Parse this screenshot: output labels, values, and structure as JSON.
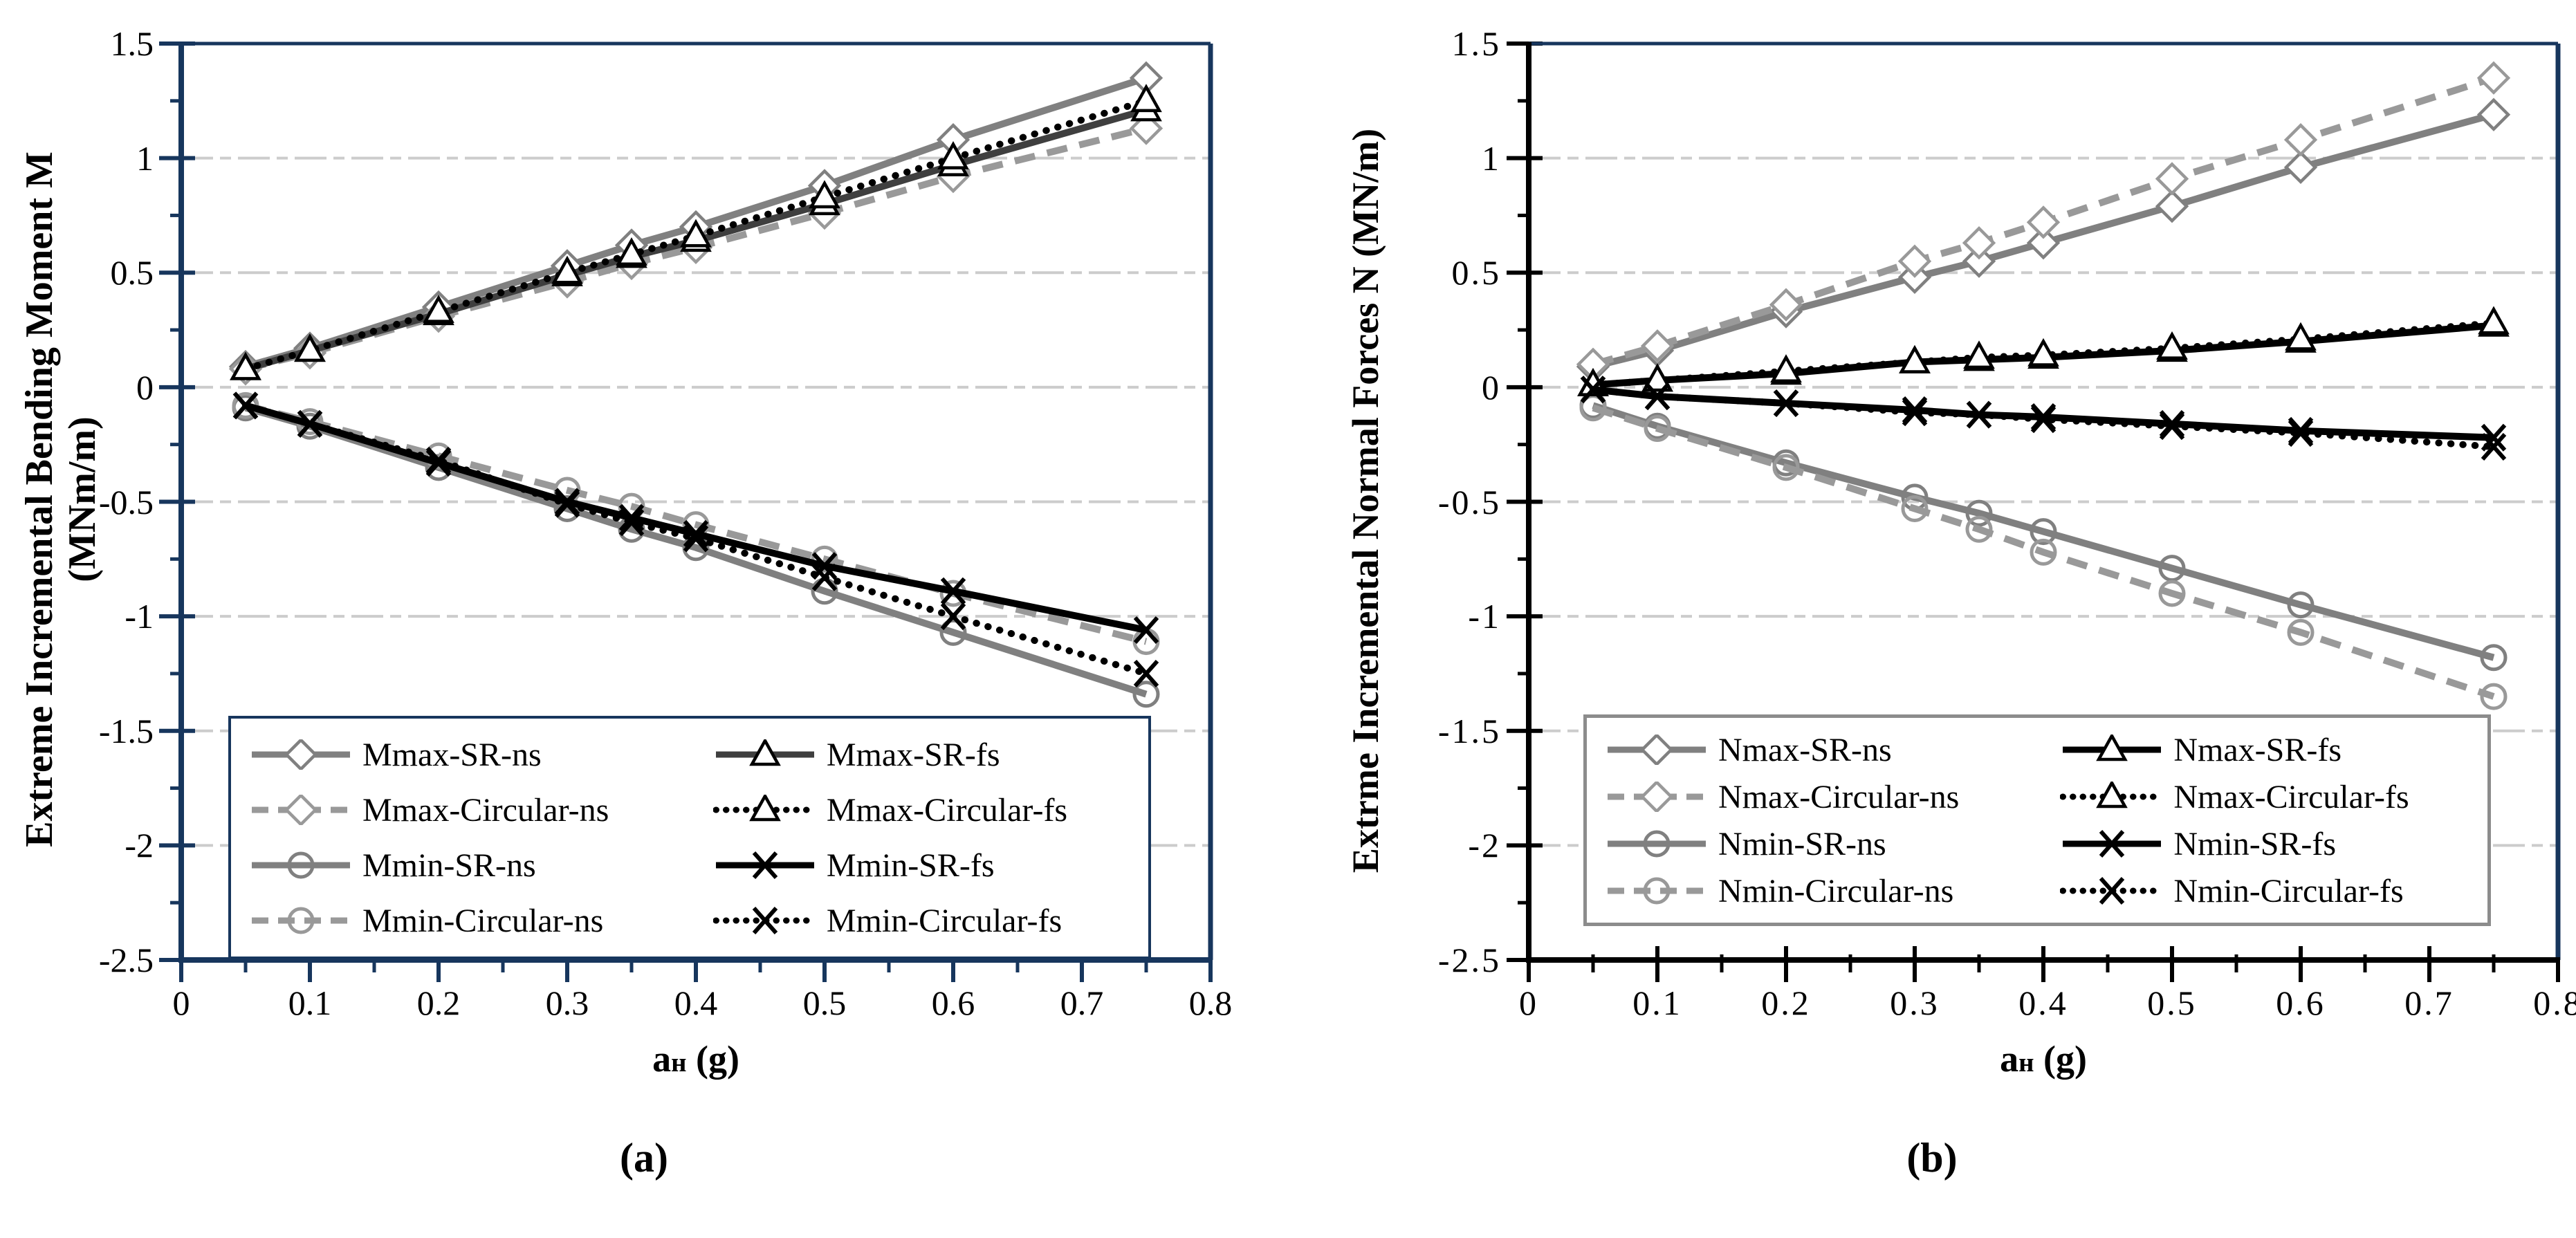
{
  "page": {
    "background": "#ffffff"
  },
  "colors": {
    "navy_axis": "#17365d",
    "black_axis": "#000000",
    "grid": "#cccccc",
    "gray_solid": "#808080",
    "gray_dashed": "#999999",
    "dark_gray": "#3f3f3f",
    "black": "#000000",
    "marker_fill": "#ffffff",
    "legend_border_a": "#17365d",
    "legend_border_b": "#8c8c8c"
  },
  "chart_data": [
    {
      "id": "a",
      "type": "line",
      "caption": "(a)",
      "ylabel_line1": "Extreme Incremental Bending Moment M",
      "ylabel_line2": "(MNm/m)",
      "xlabel_prefix": "a",
      "xlabel_sub": "н",
      "xlabel_suffix": " (g)",
      "xlim": [
        0,
        0.8
      ],
      "ylim": [
        -2.5,
        1.5
      ],
      "x_major_step": 0.1,
      "x_minor_step": 0.05,
      "y_major_step": 0.5,
      "y_minor_step": 0.25,
      "grid": "horizontal dashed every 0.5",
      "legend_position": "bottom-left inside plot",
      "x_tick_labels": [
        "0",
        "0.1",
        "0.2",
        "0.3",
        "0.4",
        "0.5",
        "0.6",
        "0.7",
        "0.8"
      ],
      "y_tick_labels": [
        "1.5",
        "1",
        "0.5",
        "0",
        "-0.5",
        "-1",
        "-1.5",
        "-2",
        "-2.5"
      ],
      "axis_sides": {
        "left": "navy",
        "bottom": "navy",
        "top": "navy",
        "right": "navy"
      },
      "x": [
        0.05,
        0.1,
        0.2,
        0.3,
        0.35,
        0.4,
        0.5,
        0.6,
        0.75
      ],
      "series": [
        {
          "name": "Mmax-SR-ns",
          "line": "solid",
          "color": "#808080",
          "marker": "diamond",
          "values": [
            0.09,
            0.17,
            0.35,
            0.53,
            0.62,
            0.7,
            0.88,
            1.08,
            1.35
          ]
        },
        {
          "name": "Mmax-Circular-ns",
          "line": "dashed",
          "color": "#999999",
          "marker": "diamond",
          "values": [
            0.08,
            0.15,
            0.31,
            0.46,
            0.54,
            0.61,
            0.76,
            0.92,
            1.13
          ]
        },
        {
          "name": "Mmin-SR-ns",
          "line": "solid",
          "color": "#808080",
          "marker": "circle",
          "values": [
            -0.09,
            -0.17,
            -0.35,
            -0.53,
            -0.62,
            -0.7,
            -0.89,
            -1.07,
            -1.34
          ]
        },
        {
          "name": "Mmin-Circular-ns",
          "line": "dashed",
          "color": "#999999",
          "marker": "circle",
          "values": [
            -0.08,
            -0.15,
            -0.3,
            -0.45,
            -0.52,
            -0.6,
            -0.75,
            -0.9,
            -1.11
          ]
        },
        {
          "name": "Mmax-SR-fs",
          "line": "solid",
          "color": "#3f3f3f",
          "marker": "triangle",
          "marker_color": "#000000",
          "values": [
            0.08,
            0.16,
            0.32,
            0.49,
            0.57,
            0.64,
            0.8,
            0.97,
            1.21
          ]
        },
        {
          "name": "Mmax-Circular-fs",
          "line": "dotted",
          "color": "#000000",
          "marker": "triangle",
          "values": [
            0.08,
            0.16,
            0.33,
            0.5,
            0.58,
            0.66,
            0.83,
            1.0,
            1.25
          ]
        },
        {
          "name": "Mmin-SR-fs",
          "line": "solid",
          "color": "#000000",
          "marker": "x",
          "values": [
            -0.08,
            -0.16,
            -0.33,
            -0.5,
            -0.57,
            -0.64,
            -0.78,
            -0.89,
            -1.06
          ]
        },
        {
          "name": "Mmin-Circular-fs",
          "line": "dotted",
          "color": "#000000",
          "marker": "x",
          "values": [
            -0.08,
            -0.16,
            -0.32,
            -0.51,
            -0.59,
            -0.66,
            -0.83,
            -1.0,
            -1.25
          ]
        }
      ]
    },
    {
      "id": "b",
      "type": "line",
      "caption": "(b)",
      "ylabel": "Extrme Incremental Normal Forces N (MN/m)",
      "xlabel_prefix": "a",
      "xlabel_sub": "н",
      "xlabel_suffix": " (g)",
      "xlim": [
        0,
        0.8
      ],
      "ylim": [
        -2.5,
        1.5
      ],
      "x_major_step": 0.1,
      "x_minor_step": 0.05,
      "y_major_step": 0.5,
      "y_minor_step": 0.25,
      "grid": "horizontal dashed every 0.5",
      "legend_position": "bottom-left inside plot",
      "x_tick_labels": [
        "0",
        "0.1",
        "0.2",
        "0.3",
        "0.4",
        "0.5",
        "0.6",
        "0.7",
        "0.8"
      ],
      "y_tick_labels": [
        "1.5",
        "1",
        "0.5",
        "0",
        "-0.5",
        "-1",
        "-1.5",
        "-2",
        "-2.5"
      ],
      "axis_sides": {
        "left": "black",
        "bottom": "black",
        "top": "navy",
        "right": "navy"
      },
      "x": [
        0.05,
        0.1,
        0.2,
        0.3,
        0.35,
        0.4,
        0.5,
        0.6,
        0.75
      ],
      "series": [
        {
          "name": "Nmax-SR-ns",
          "line": "solid",
          "color": "#808080",
          "marker": "diamond",
          "values": [
            0.09,
            0.16,
            0.33,
            0.48,
            0.55,
            0.63,
            0.79,
            0.96,
            1.19
          ]
        },
        {
          "name": "Nmax-Circular-ns",
          "line": "dashed",
          "color": "#999999",
          "marker": "diamond",
          "values": [
            0.1,
            0.18,
            0.36,
            0.55,
            0.63,
            0.72,
            0.91,
            1.08,
            1.35
          ]
        },
        {
          "name": "Nmin-SR-ns",
          "line": "solid",
          "color": "#808080",
          "marker": "circle",
          "values": [
            -0.08,
            -0.17,
            -0.33,
            -0.48,
            -0.55,
            -0.63,
            -0.79,
            -0.95,
            -1.18
          ]
        },
        {
          "name": "Nmin-Circular-ns",
          "line": "dashed",
          "color": "#999999",
          "marker": "circle",
          "values": [
            -0.09,
            -0.18,
            -0.35,
            -0.53,
            -0.62,
            -0.72,
            -0.9,
            -1.07,
            -1.35
          ]
        },
        {
          "name": "Nmax-SR-fs",
          "line": "solid",
          "color": "#000000",
          "marker": "triangle",
          "values": [
            0.01,
            0.03,
            0.06,
            0.11,
            0.12,
            0.13,
            0.16,
            0.2,
            0.27
          ]
        },
        {
          "name": "Nmax-Circular-fs",
          "line": "dotted",
          "color": "#000000",
          "marker": "triangle",
          "values": [
            0.01,
            0.03,
            0.07,
            0.11,
            0.13,
            0.14,
            0.17,
            0.21,
            0.28
          ]
        },
        {
          "name": "Nmin-SR-fs",
          "line": "solid",
          "color": "#000000",
          "marker": "x",
          "values": [
            -0.01,
            -0.04,
            -0.07,
            -0.1,
            -0.12,
            -0.13,
            -0.16,
            -0.19,
            -0.22
          ]
        },
        {
          "name": "Nmin-Circular-fs",
          "line": "dotted",
          "color": "#000000",
          "marker": "x",
          "values": [
            -0.01,
            -0.04,
            -0.07,
            -0.11,
            -0.12,
            -0.14,
            -0.17,
            -0.2,
            -0.26
          ]
        }
      ]
    }
  ]
}
